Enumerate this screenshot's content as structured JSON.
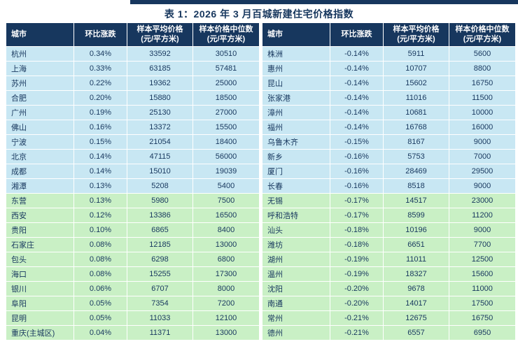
{
  "title": "表 1：2026 年 3 月百城新建住宅价格指数",
  "header": {
    "city": "城市",
    "change": "环比涨跌",
    "avg_price_line1": "样本平均价格",
    "avg_price_line2": "(元/平方米)",
    "median_price_line1": "样本价格中位数",
    "median_price_line2": "(元/平方米)"
  },
  "left_table": {
    "rows": [
      {
        "city": "杭州",
        "change": "0.34%",
        "avg": "33592",
        "median": "30510",
        "group": "blue"
      },
      {
        "city": "上海",
        "change": "0.33%",
        "avg": "63185",
        "median": "57481",
        "group": "blue"
      },
      {
        "city": "苏州",
        "change": "0.22%",
        "avg": "19362",
        "median": "25000",
        "group": "blue"
      },
      {
        "city": "合肥",
        "change": "0.20%",
        "avg": "15880",
        "median": "18500",
        "group": "blue"
      },
      {
        "city": "广州",
        "change": "0.19%",
        "avg": "25130",
        "median": "27000",
        "group": "blue"
      },
      {
        "city": "佛山",
        "change": "0.16%",
        "avg": "13372",
        "median": "15500",
        "group": "blue"
      },
      {
        "city": "宁波",
        "change": "0.15%",
        "avg": "21054",
        "median": "18400",
        "group": "blue"
      },
      {
        "city": "北京",
        "change": "0.14%",
        "avg": "47115",
        "median": "56000",
        "group": "blue"
      },
      {
        "city": "成都",
        "change": "0.14%",
        "avg": "15010",
        "median": "19039",
        "group": "blue"
      },
      {
        "city": "湘潭",
        "change": "0.13%",
        "avg": "5208",
        "median": "5400",
        "group": "blue"
      },
      {
        "city": "东营",
        "change": "0.13%",
        "avg": "5980",
        "median": "7500",
        "group": "green"
      },
      {
        "city": "西安",
        "change": "0.12%",
        "avg": "13386",
        "median": "16500",
        "group": "green"
      },
      {
        "city": "贵阳",
        "change": "0.10%",
        "avg": "6865",
        "median": "8400",
        "group": "green"
      },
      {
        "city": "石家庄",
        "change": "0.08%",
        "avg": "12185",
        "median": "13000",
        "group": "green"
      },
      {
        "city": "包头",
        "change": "0.08%",
        "avg": "6298",
        "median": "6800",
        "group": "green"
      },
      {
        "city": "海口",
        "change": "0.08%",
        "avg": "15255",
        "median": "17300",
        "group": "green"
      },
      {
        "city": "银川",
        "change": "0.06%",
        "avg": "6707",
        "median": "8000",
        "group": "green"
      },
      {
        "city": "阜阳",
        "change": "0.05%",
        "avg": "7354",
        "median": "7200",
        "group": "green"
      },
      {
        "city": "昆明",
        "change": "0.05%",
        "avg": "11033",
        "median": "12100",
        "group": "green"
      },
      {
        "city": "重庆(主城区)",
        "change": "0.04%",
        "avg": "11371",
        "median": "13000",
        "group": "green"
      }
    ]
  },
  "right_table": {
    "rows": [
      {
        "city": "株洲",
        "change": "-0.14%",
        "avg": "5911",
        "median": "5600",
        "group": "blue"
      },
      {
        "city": "惠州",
        "change": "-0.14%",
        "avg": "10707",
        "median": "8800",
        "group": "blue"
      },
      {
        "city": "昆山",
        "change": "-0.14%",
        "avg": "15602",
        "median": "16750",
        "group": "blue"
      },
      {
        "city": "张家港",
        "change": "-0.14%",
        "avg": "11016",
        "median": "11500",
        "group": "blue"
      },
      {
        "city": "漳州",
        "change": "-0.14%",
        "avg": "10681",
        "median": "10000",
        "group": "blue"
      },
      {
        "city": "福州",
        "change": "-0.14%",
        "avg": "16768",
        "median": "16000",
        "group": "blue"
      },
      {
        "city": "乌鲁木齐",
        "change": "-0.15%",
        "avg": "8167",
        "median": "9000",
        "group": "blue"
      },
      {
        "city": "新乡",
        "change": "-0.16%",
        "avg": "5753",
        "median": "7000",
        "group": "blue"
      },
      {
        "city": "厦门",
        "change": "-0.16%",
        "avg": "28469",
        "median": "29500",
        "group": "blue"
      },
      {
        "city": "长春",
        "change": "-0.16%",
        "avg": "8518",
        "median": "9000",
        "group": "blue"
      },
      {
        "city": "无锡",
        "change": "-0.17%",
        "avg": "14517",
        "median": "23000",
        "group": "green"
      },
      {
        "city": "呼和浩特",
        "change": "-0.17%",
        "avg": "8599",
        "median": "11200",
        "group": "green"
      },
      {
        "city": "汕头",
        "change": "-0.18%",
        "avg": "10196",
        "median": "9000",
        "group": "green"
      },
      {
        "city": "潍坊",
        "change": "-0.18%",
        "avg": "6651",
        "median": "7700",
        "group": "green"
      },
      {
        "city": "湖州",
        "change": "-0.19%",
        "avg": "11011",
        "median": "12500",
        "group": "green"
      },
      {
        "city": "温州",
        "change": "-0.19%",
        "avg": "18327",
        "median": "15600",
        "group": "green"
      },
      {
        "city": "沈阳",
        "change": "-0.20%",
        "avg": "9678",
        "median": "11000",
        "group": "green"
      },
      {
        "city": "南通",
        "change": "-0.20%",
        "avg": "14017",
        "median": "17500",
        "group": "green"
      },
      {
        "city": "常州",
        "change": "-0.21%",
        "avg": "12675",
        "median": "16750",
        "group": "green"
      },
      {
        "city": "德州",
        "change": "-0.21%",
        "avg": "6557",
        "median": "6950",
        "group": "green"
      }
    ]
  },
  "colors": {
    "header_bg": "#17375E",
    "accent_bar": "#17375E",
    "text": "#17375E",
    "row_blue": "#C8E7F3",
    "row_green": "#C9F0C5"
  }
}
